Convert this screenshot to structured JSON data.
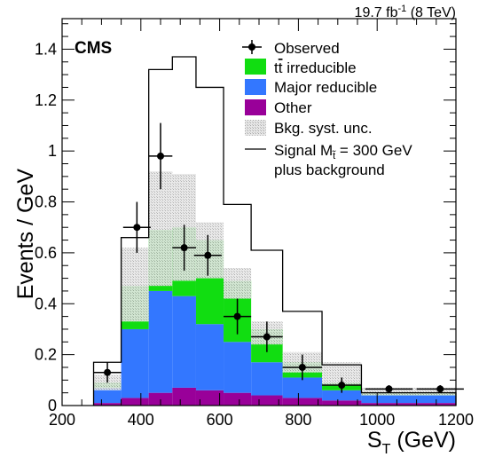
{
  "header": {
    "lumi_value": "19.7 fb",
    "lumi_sup": "-1",
    "lumi_energy": " (8 TeV)",
    "experiment": "CMS"
  },
  "legend": {
    "observed": "Observed",
    "ttbar_pre": "t",
    "ttbar_bar": "t",
    "ttbar_post": " irreducible",
    "major": "Major reducible",
    "other": "Other",
    "syst": "Bkg. syst. unc.",
    "signal_pre": "Signal M",
    "signal_sub": "t̃",
    "signal_post": " = 300 GeV",
    "signal_line2": "plus background"
  },
  "colors": {
    "ttbar": "#11dd11",
    "major": "#3377ff",
    "other": "#990099",
    "syst": "#d0d0d0",
    "signal": "#000000"
  },
  "chart_data": {
    "type": "bar",
    "xlabel": "S",
    "xlabel_sub": "T",
    "xlabel_unit": " (GeV)",
    "ylabel": "Events / GeV",
    "xlim": [
      200,
      1200
    ],
    "ylim": [
      0,
      1.52
    ],
    "xticks": [
      200,
      400,
      600,
      800,
      1000,
      1200
    ],
    "yticks": [
      0,
      0.2,
      0.4,
      0.6,
      0.8,
      1,
      1.2,
      1.4
    ],
    "ytick_labels": [
      "0",
      "0.2",
      "0.4",
      "0.6",
      "0.8",
      "1",
      "1.2",
      "1.4"
    ],
    "bin_edges": [
      280,
      350,
      420,
      480,
      540,
      610,
      680,
      760,
      860,
      960,
      1200
    ],
    "other": [
      0.01,
      0.03,
      0.05,
      0.07,
      0.06,
      0.05,
      0.04,
      0.03,
      0.02,
      0.01
    ],
    "major": [
      0.06,
      0.27,
      0.4,
      0.36,
      0.26,
      0.2,
      0.13,
      0.08,
      0.04,
      0.03
    ],
    "ttbar": [
      0.02,
      0.17,
      0.24,
      0.27,
      0.33,
      0.24,
      0.13,
      0.06,
      0.03,
      0.01
    ],
    "syst_up": [
      0.12,
      0.62,
      0.92,
      0.91,
      0.72,
      0.54,
      0.33,
      0.21,
      0.17,
      0.07
    ],
    "syst_dn": [
      0.06,
      0.33,
      0.47,
      0.49,
      0.5,
      0.42,
      0.24,
      0.13,
      0.08,
      0.04
    ],
    "signal": [
      0.17,
      0.66,
      1.32,
      1.37,
      1.25,
      0.79,
      0.61,
      0.37,
      0.16,
      0.05
    ],
    "observed": {
      "x": [
        315,
        390,
        450,
        510,
        570,
        645,
        720,
        810,
        910,
        1030,
        1160
      ],
      "y": [
        0.13,
        0.7,
        0.98,
        0.62,
        0.59,
        0.35,
        0.27,
        0.15,
        0.08,
        0.065,
        0.065
      ],
      "yerr": [
        0.04,
        0.1,
        0.13,
        0.09,
        0.08,
        0.07,
        0.06,
        0.05,
        0.03,
        0.015,
        0.015
      ],
      "xerr": [
        35,
        35,
        30,
        30,
        35,
        35,
        40,
        50,
        50,
        60,
        60
      ]
    }
  }
}
